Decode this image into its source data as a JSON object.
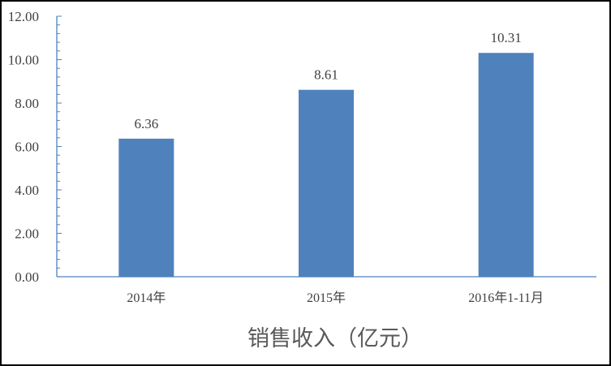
{
  "chart_data": {
    "type": "bar",
    "title": "销售收入（亿元）",
    "categories": [
      "2014年",
      "2015年",
      "2016年1-11月"
    ],
    "values": [
      6.36,
      8.61,
      10.31
    ],
    "data_labels": [
      "6.36",
      "8.61",
      "10.31"
    ],
    "ylim": [
      0,
      12
    ],
    "yticks": [
      "0.00",
      "2.00",
      "4.00",
      "6.00",
      "8.00",
      "10.00",
      "12.00"
    ],
    "grid": false,
    "legend": "none",
    "colors": {
      "bar": "#4f81bd",
      "axis": "#4f81bd",
      "text": "#404040",
      "title": "#595959"
    }
  }
}
